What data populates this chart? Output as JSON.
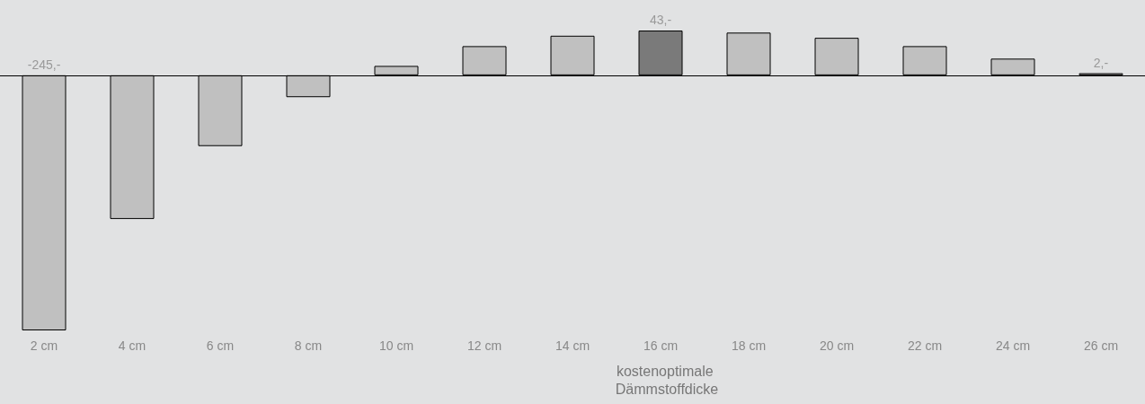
{
  "chart_data": {
    "type": "bar",
    "categories": [
      "2 cm",
      "4 cm",
      "6 cm",
      "8 cm",
      "10 cm",
      "12 cm",
      "14 cm",
      "16 cm",
      "18 cm",
      "20 cm",
      "22 cm",
      "24 cm",
      "26 cm"
    ],
    "values": [
      -245,
      -138,
      -68,
      -21,
      9,
      28,
      38,
      43,
      41,
      36,
      28,
      16,
      2
    ],
    "colors": [
      "#c0c0c0",
      "#c0c0c0",
      "#c0c0c0",
      "#c0c0c0",
      "#c0c0c0",
      "#c0c0c0",
      "#c0c0c0",
      "#7a7a7a",
      "#c0c0c0",
      "#c0c0c0",
      "#c0c0c0",
      "#c0c0c0",
      "#c0c0c0"
    ],
    "value_labels": [
      "-245,-",
      null,
      null,
      null,
      null,
      null,
      null,
      "43,-",
      null,
      null,
      null,
      null,
      "2,-"
    ],
    "annotations": [
      "kostenoptimale Dämmstoffdicke"
    ],
    "grid": false
  }
}
